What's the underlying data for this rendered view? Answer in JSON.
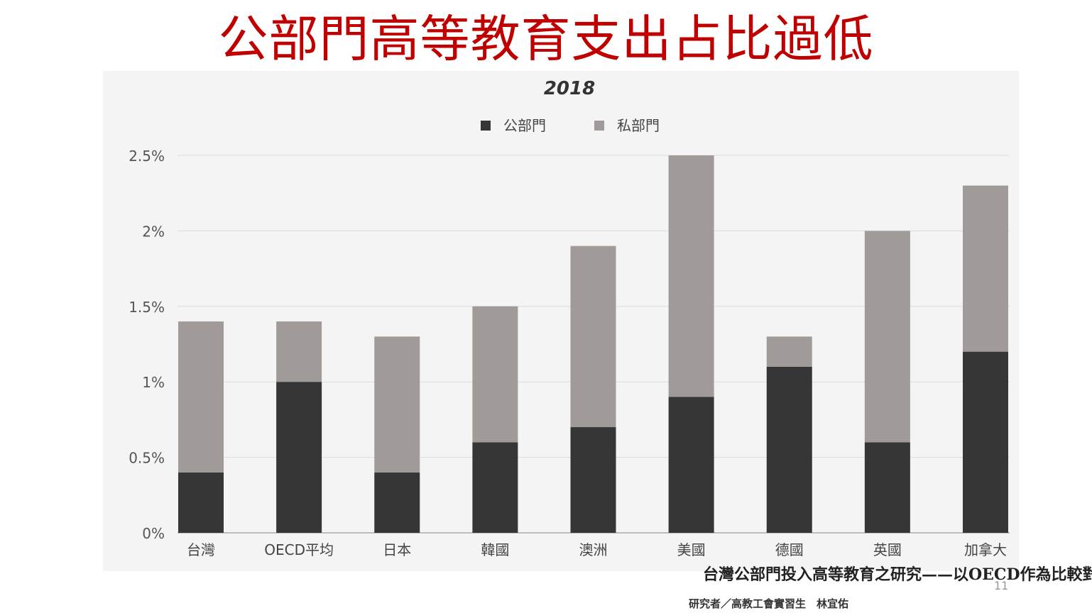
{
  "slide_title": "公部門高等教育支出占比過低",
  "source": "台灣公部門投入高等教育之研究——以OECD作為比較對象",
  "author": "研究者／高教工會實習生　林宜佑",
  "page_number": "11",
  "colors": {
    "title": "#c00000",
    "public": "#363636",
    "private": "#a09b98",
    "grid": "#dcdcdc"
  },
  "chart_data": {
    "type": "bar",
    "stacked": true,
    "title": "2018",
    "xlabel": "",
    "ylabel": "",
    "legend_position": "top-center",
    "grid": true,
    "categories": [
      "台灣",
      "OECD平均",
      "日本",
      "韓國",
      "澳洲",
      "美國",
      "德國",
      "英國",
      "加拿大"
    ],
    "series": [
      {
        "name": "公部門",
        "color": "#363636",
        "values": [
          0.4,
          1.0,
          0.4,
          0.6,
          0.7,
          0.9,
          1.1,
          0.6,
          1.2
        ]
      },
      {
        "name": "私部門",
        "color": "#a09b98",
        "values": [
          1.0,
          0.4,
          0.9,
          0.9,
          1.2,
          1.6,
          0.2,
          1.4,
          1.1
        ]
      }
    ],
    "ylim": [
      0,
      2.5
    ],
    "yticks": [
      0,
      0.5,
      1,
      1.5,
      2,
      2.5
    ],
    "ytick_labels": [
      "0%",
      "0.5%",
      "1%",
      "1.5%",
      "2%",
      "2.5%"
    ]
  }
}
